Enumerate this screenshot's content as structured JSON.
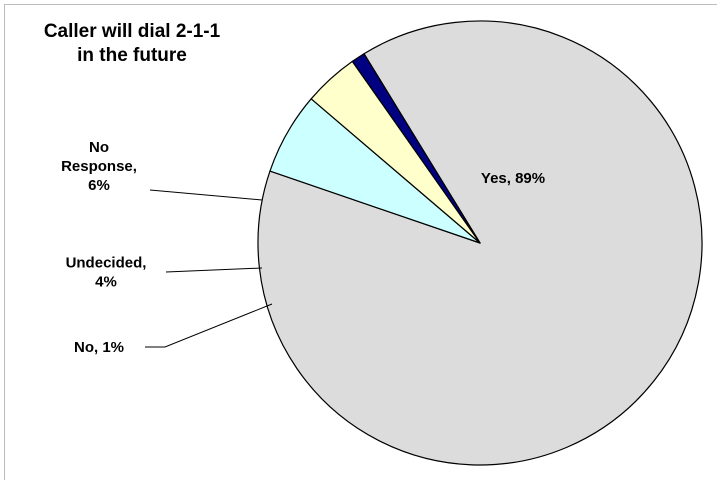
{
  "chart_data": {
    "type": "pie",
    "title": "Caller will dial 2-1-1\nin the future",
    "slices": [
      {
        "label": "Yes, 89%",
        "lines": [
          "Yes, 89%"
        ],
        "value": 89,
        "color": "#dcdcdc"
      },
      {
        "label": "No Response, 6%",
        "lines": [
          "No",
          "Response,",
          "6%"
        ],
        "value": 6,
        "color": "#ccffff"
      },
      {
        "label": "Undecided, 4%",
        "lines": [
          "Undecided,",
          "4%"
        ],
        "value": 4,
        "color": "#ffffcc"
      },
      {
        "label": "No, 1%",
        "lines": [
          "No, 1%"
        ],
        "value": 1,
        "color": "#000080"
      }
    ],
    "legend": "none"
  }
}
